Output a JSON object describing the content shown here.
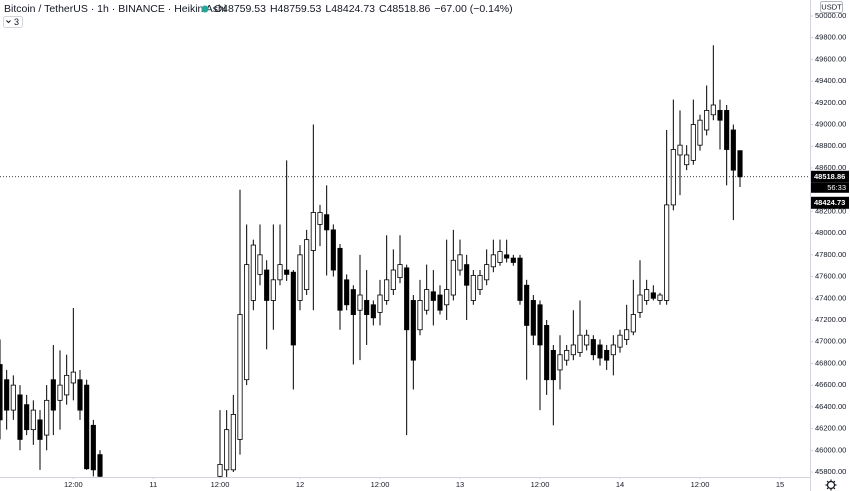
{
  "chart_data": {
    "type": "candlestick",
    "title": "Bitcoin / TetherUS · 1h · BINANCE · Heikin Ashi",
    "legend_values": [
      "O48759.53",
      "H48759.53",
      "L48424.73",
      "C48518.86",
      "−67.00 (−0.14%)"
    ],
    "indicator_count": "3",
    "currency": "USDT",
    "countdown": "56:33",
    "price_labels": [
      48518.86,
      48424.73
    ],
    "up_color": "#ffffff",
    "down_color": "#000000",
    "outline_color": "#000000",
    "grid": false,
    "xlim": [
      0,
      121.5
    ],
    "xticks": [
      {
        "value": 11,
        "label": "12:00"
      },
      {
        "value": 23,
        "label": "11"
      },
      {
        "value": 33,
        "label": "12:00"
      },
      {
        "value": 45,
        "label": "12"
      },
      {
        "value": 57,
        "label": "12:00"
      },
      {
        "value": 69,
        "label": "13"
      },
      {
        "value": 81,
        "label": "12:00"
      },
      {
        "value": 93,
        "label": "14"
      },
      {
        "value": 105,
        "label": "12:00"
      },
      {
        "value": 117,
        "label": "15"
      }
    ],
    "ylim": [
      45754,
      50147
    ],
    "yticks": [
      {
        "value": 45800,
        "label": "45800.00"
      },
      {
        "value": 46000,
        "label": "46000.00"
      },
      {
        "value": 46200,
        "label": "46200.00"
      },
      {
        "value": 46400,
        "label": "46400.00"
      },
      {
        "value": 46600,
        "label": "46600.00"
      },
      {
        "value": 46800,
        "label": "46800.00"
      },
      {
        "value": 47000,
        "label": "47000.00"
      },
      {
        "value": 47200,
        "label": "47200.00"
      },
      {
        "value": 47400,
        "label": "47400.00"
      },
      {
        "value": 47600,
        "label": "47600.00"
      },
      {
        "value": 47800,
        "label": "47800.00"
      },
      {
        "value": 48000,
        "label": "48000.00"
      },
      {
        "value": 48200,
        "label": "48200.00"
      },
      {
        "value": 48400,
        "label": "48400.00"
      },
      {
        "value": 48600,
        "label": "48600.00"
      },
      {
        "value": 48800,
        "label": "48800.00"
      },
      {
        "value": 49000,
        "label": "49000.00"
      },
      {
        "value": 49200,
        "label": "49200.00"
      },
      {
        "value": 49400,
        "label": "49400.00"
      },
      {
        "value": 49600,
        "label": "49600.00"
      },
      {
        "value": 49800,
        "label": "49800.00"
      },
      {
        "value": 50000,
        "label": "50000.00"
      }
    ],
    "ohlc": [
      {
        "open": 46790,
        "high": 47020,
        "low": 46100,
        "close": 46280
      },
      {
        "open": 46650,
        "high": 46740,
        "low": 46190,
        "close": 46370
      },
      {
        "open": 46370,
        "high": 46690,
        "low": 46280,
        "close": 46600
      },
      {
        "open": 46510,
        "high": 46600,
        "low": 46000,
        "close": 46100
      },
      {
        "open": 46420,
        "high": 46510,
        "low": 46140,
        "close": 46190
      },
      {
        "open": 46190,
        "high": 46460,
        "low": 46050,
        "close": 46370
      },
      {
        "open": 46280,
        "high": 46370,
        "low": 45820,
        "close": 46100
      },
      {
        "open": 46140,
        "high": 46600,
        "low": 46000,
        "close": 46460
      },
      {
        "open": 46650,
        "high": 46970,
        "low": 46140,
        "close": 46370
      },
      {
        "open": 46460,
        "high": 46920,
        "low": 46190,
        "close": 46600
      },
      {
        "open": 46510,
        "high": 46880,
        "low": 46420,
        "close": 46690
      },
      {
        "open": 46620,
        "high": 47310,
        "low": 46460,
        "close": 46720
      },
      {
        "open": 46650,
        "high": 46740,
        "low": 46280,
        "close": 46370
      },
      {
        "open": 46600,
        "high": 46650,
        "low": 45820,
        "close": 45830
      },
      {
        "open": 46230,
        "high": 46280,
        "low": 45760,
        "close": 45820
      },
      {
        "open": 45960,
        "high": 46000,
        "low": 45750,
        "close": 45760
      },
      null,
      null,
      null,
      null,
      null,
      null,
      null,
      null,
      null,
      null,
      null,
      null,
      null,
      null,
      null,
      null,
      null,
      {
        "open": 45760,
        "high": 46370,
        "low": 45750,
        "close": 45870
      },
      {
        "open": 45820,
        "high": 46370,
        "low": 45750,
        "close": 46190
      },
      {
        "open": 45820,
        "high": 46510,
        "low": 45800,
        "close": 46330
      },
      {
        "open": 46100,
        "high": 48400,
        "low": 45960,
        "close": 47250
      },
      {
        "open": 46650,
        "high": 48080,
        "low": 46600,
        "close": 47710
      },
      {
        "open": 47380,
        "high": 47940,
        "low": 47290,
        "close": 47890
      },
      {
        "open": 47620,
        "high": 48080,
        "low": 47520,
        "close": 47800
      },
      {
        "open": 47660,
        "high": 47750,
        "low": 46930,
        "close": 47380
      },
      {
        "open": 47380,
        "high": 48080,
        "low": 47110,
        "close": 47570
      },
      {
        "open": 47570,
        "high": 48080,
        "low": 47520,
        "close": 47710
      },
      {
        "open": 47660,
        "high": 48670,
        "low": 47560,
        "close": 47620
      },
      {
        "open": 47640,
        "high": 47660,
        "low": 46560,
        "close": 46970
      },
      {
        "open": 47380,
        "high": 47890,
        "low": 47290,
        "close": 47800
      },
      {
        "open": 47480,
        "high": 48030,
        "low": 47430,
        "close": 47940
      },
      {
        "open": 47840,
        "high": 49000,
        "low": 47290,
        "close": 48190
      },
      {
        "open": 48080,
        "high": 48260,
        "low": 47880,
        "close": 48190
      },
      {
        "open": 48170,
        "high": 48440,
        "low": 47610,
        "close": 48030
      },
      {
        "open": 48030,
        "high": 48080,
        "low": 47600,
        "close": 47660
      },
      {
        "open": 47860,
        "high": 47900,
        "low": 47110,
        "close": 47290
      },
      {
        "open": 47570,
        "high": 47620,
        "low": 47290,
        "close": 47340
      },
      {
        "open": 47480,
        "high": 47520,
        "low": 46790,
        "close": 47250
      },
      {
        "open": 47290,
        "high": 47800,
        "low": 46830,
        "close": 47430
      },
      {
        "open": 47380,
        "high": 47660,
        "low": 46970,
        "close": 47250
      },
      {
        "open": 47340,
        "high": 47380,
        "low": 47150,
        "close": 47220
      },
      {
        "open": 47270,
        "high": 47570,
        "low": 47150,
        "close": 47430
      },
      {
        "open": 47380,
        "high": 47980,
        "low": 47340,
        "close": 47570
      },
      {
        "open": 47480,
        "high": 47850,
        "low": 47430,
        "close": 47660
      },
      {
        "open": 47590,
        "high": 47980,
        "low": 47540,
        "close": 47710
      },
      {
        "open": 47680,
        "high": 47710,
        "low": 46140,
        "close": 47110
      },
      {
        "open": 47380,
        "high": 47430,
        "low": 46560,
        "close": 46830
      },
      {
        "open": 47110,
        "high": 47570,
        "low": 47060,
        "close": 47380
      },
      {
        "open": 47290,
        "high": 47710,
        "low": 47250,
        "close": 47480
      },
      {
        "open": 47460,
        "high": 47660,
        "low": 47150,
        "close": 47380
      },
      {
        "open": 47430,
        "high": 47520,
        "low": 47250,
        "close": 47290
      },
      {
        "open": 47340,
        "high": 47940,
        "low": 47200,
        "close": 47480
      },
      {
        "open": 47430,
        "high": 48030,
        "low": 47380,
        "close": 47750
      },
      {
        "open": 47660,
        "high": 47940,
        "low": 47610,
        "close": 47800
      },
      {
        "open": 47710,
        "high": 47800,
        "low": 47200,
        "close": 47520
      },
      {
        "open": 47380,
        "high": 47660,
        "low": 47340,
        "close": 47610
      },
      {
        "open": 47480,
        "high": 47660,
        "low": 47430,
        "close": 47610
      },
      {
        "open": 47570,
        "high": 47850,
        "low": 47520,
        "close": 47710
      },
      {
        "open": 47690,
        "high": 47940,
        "low": 47640,
        "close": 47800
      },
      {
        "open": 47730,
        "high": 47940,
        "low": 47700,
        "close": 47830
      },
      {
        "open": 47800,
        "high": 47940,
        "low": 47730,
        "close": 47770
      },
      {
        "open": 47770,
        "high": 47800,
        "low": 47700,
        "close": 47730
      },
      {
        "open": 47770,
        "high": 47800,
        "low": 47340,
        "close": 47380
      },
      {
        "open": 47520,
        "high": 47570,
        "low": 46650,
        "close": 47150
      },
      {
        "open": 47380,
        "high": 47430,
        "low": 46970,
        "close": 47060
      },
      {
        "open": 47340,
        "high": 47380,
        "low": 46370,
        "close": 46970
      },
      {
        "open": 47150,
        "high": 47200,
        "low": 46510,
        "close": 46650
      },
      {
        "open": 46920,
        "high": 46970,
        "low": 46230,
        "close": 46650
      },
      {
        "open": 46740,
        "high": 47060,
        "low": 46560,
        "close": 46880
      },
      {
        "open": 46830,
        "high": 46970,
        "low": 46780,
        "close": 46920
      },
      {
        "open": 46880,
        "high": 47290,
        "low": 46830,
        "close": 46970
      },
      {
        "open": 46900,
        "high": 47380,
        "low": 46860,
        "close": 47060
      },
      {
        "open": 46970,
        "high": 47110,
        "low": 46920,
        "close": 47060
      },
      {
        "open": 47020,
        "high": 47060,
        "low": 46830,
        "close": 46880
      },
      {
        "open": 46970,
        "high": 47020,
        "low": 46780,
        "close": 46850
      },
      {
        "open": 46920,
        "high": 46970,
        "low": 46740,
        "close": 46830
      },
      {
        "open": 46880,
        "high": 47060,
        "low": 46690,
        "close": 46970
      },
      {
        "open": 46950,
        "high": 47110,
        "low": 46900,
        "close": 47060
      },
      {
        "open": 47020,
        "high": 47340,
        "low": 46970,
        "close": 47110
      },
      {
        "open": 47090,
        "high": 47570,
        "low": 47060,
        "close": 47250
      },
      {
        "open": 47270,
        "high": 47750,
        "low": 47220,
        "close": 47430
      },
      {
        "open": 47380,
        "high": 47570,
        "low": 47340,
        "close": 47480
      },
      {
        "open": 47450,
        "high": 47520,
        "low": 47380,
        "close": 47400
      },
      {
        "open": 47380,
        "high": 47450,
        "low": 47340,
        "close": 47430
      },
      {
        "open": 47380,
        "high": 48950,
        "low": 47340,
        "close": 48260
      },
      {
        "open": 48260,
        "high": 49230,
        "low": 48210,
        "close": 48770
      },
      {
        "open": 48720,
        "high": 49130,
        "low": 48350,
        "close": 48810
      },
      {
        "open": 48630,
        "high": 48810,
        "low": 48580,
        "close": 48720
      },
      {
        "open": 48670,
        "high": 49230,
        "low": 48630,
        "close": 49000
      },
      {
        "open": 48810,
        "high": 49090,
        "low": 48760,
        "close": 49040
      },
      {
        "open": 48950,
        "high": 49360,
        "low": 48900,
        "close": 49130
      },
      {
        "open": 49090,
        "high": 49730,
        "low": 49040,
        "close": 49180
      },
      {
        "open": 49130,
        "high": 49230,
        "low": 48770,
        "close": 49040
      },
      {
        "open": 49130,
        "high": 49180,
        "low": 48440,
        "close": 48770
      },
      {
        "open": 48950,
        "high": 49000,
        "low": 48120,
        "close": 48580
      },
      {
        "open": 48759.53,
        "high": 48759.53,
        "low": 48424.73,
        "close": 48518.86
      }
    ]
  }
}
